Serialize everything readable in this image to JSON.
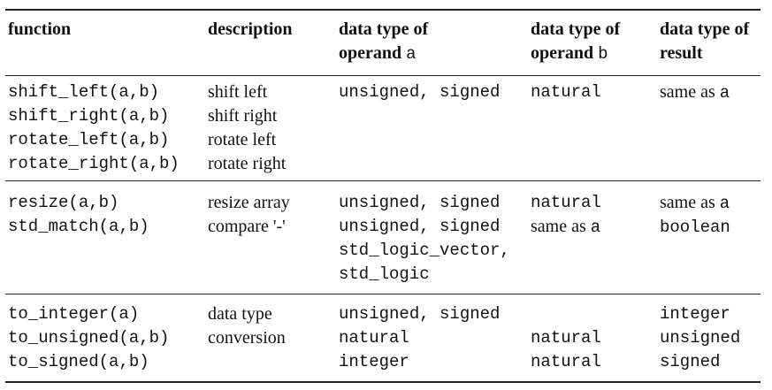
{
  "table": {
    "headers": {
      "function": "function",
      "description": "description",
      "type_a": {
        "l1": "data type of",
        "l2_pre": "operand ",
        "l2_code": "a"
      },
      "type_b": {
        "l1": "data type of",
        "l2_pre": "operand ",
        "l2_code": "b"
      },
      "type_result": {
        "l1": "data type of",
        "l2": "result"
      }
    },
    "group1": {
      "functions": [
        "shift_left(a,b)",
        "shift_right(a,b)",
        "rotate_left(a,b)",
        "rotate_right(a,b)"
      ],
      "descriptions": [
        "shift left",
        "shift right",
        "rotate left",
        "rotate right"
      ],
      "type_a": [
        "unsigned, signed"
      ],
      "type_b": [
        "natural"
      ],
      "result_pre": "same as ",
      "result_code": "a"
    },
    "group2": {
      "functions": [
        "resize(a,b)",
        "std_match(a,b)"
      ],
      "descriptions": [
        "resize array",
        "compare '-'"
      ],
      "type_a": [
        "unsigned, signed",
        "unsigned, signed",
        "std_logic_vector,",
        "std_logic"
      ],
      "type_b_line1": "natural",
      "type_b_line2_pre": "same as ",
      "type_b_line2_code": "a",
      "result_line1_pre": "same as ",
      "result_line1_code": "a",
      "result_line2": "boolean"
    },
    "group3": {
      "functions": [
        "to_integer(a)",
        "to_unsigned(a,b)",
        "to_signed(a,b)"
      ],
      "descriptions": [
        "data type",
        "conversion"
      ],
      "type_a": [
        "unsigned, signed",
        "natural",
        "integer"
      ],
      "type_b": [
        "natural",
        "natural"
      ],
      "result": [
        "integer",
        "unsigned",
        "signed"
      ]
    }
  }
}
